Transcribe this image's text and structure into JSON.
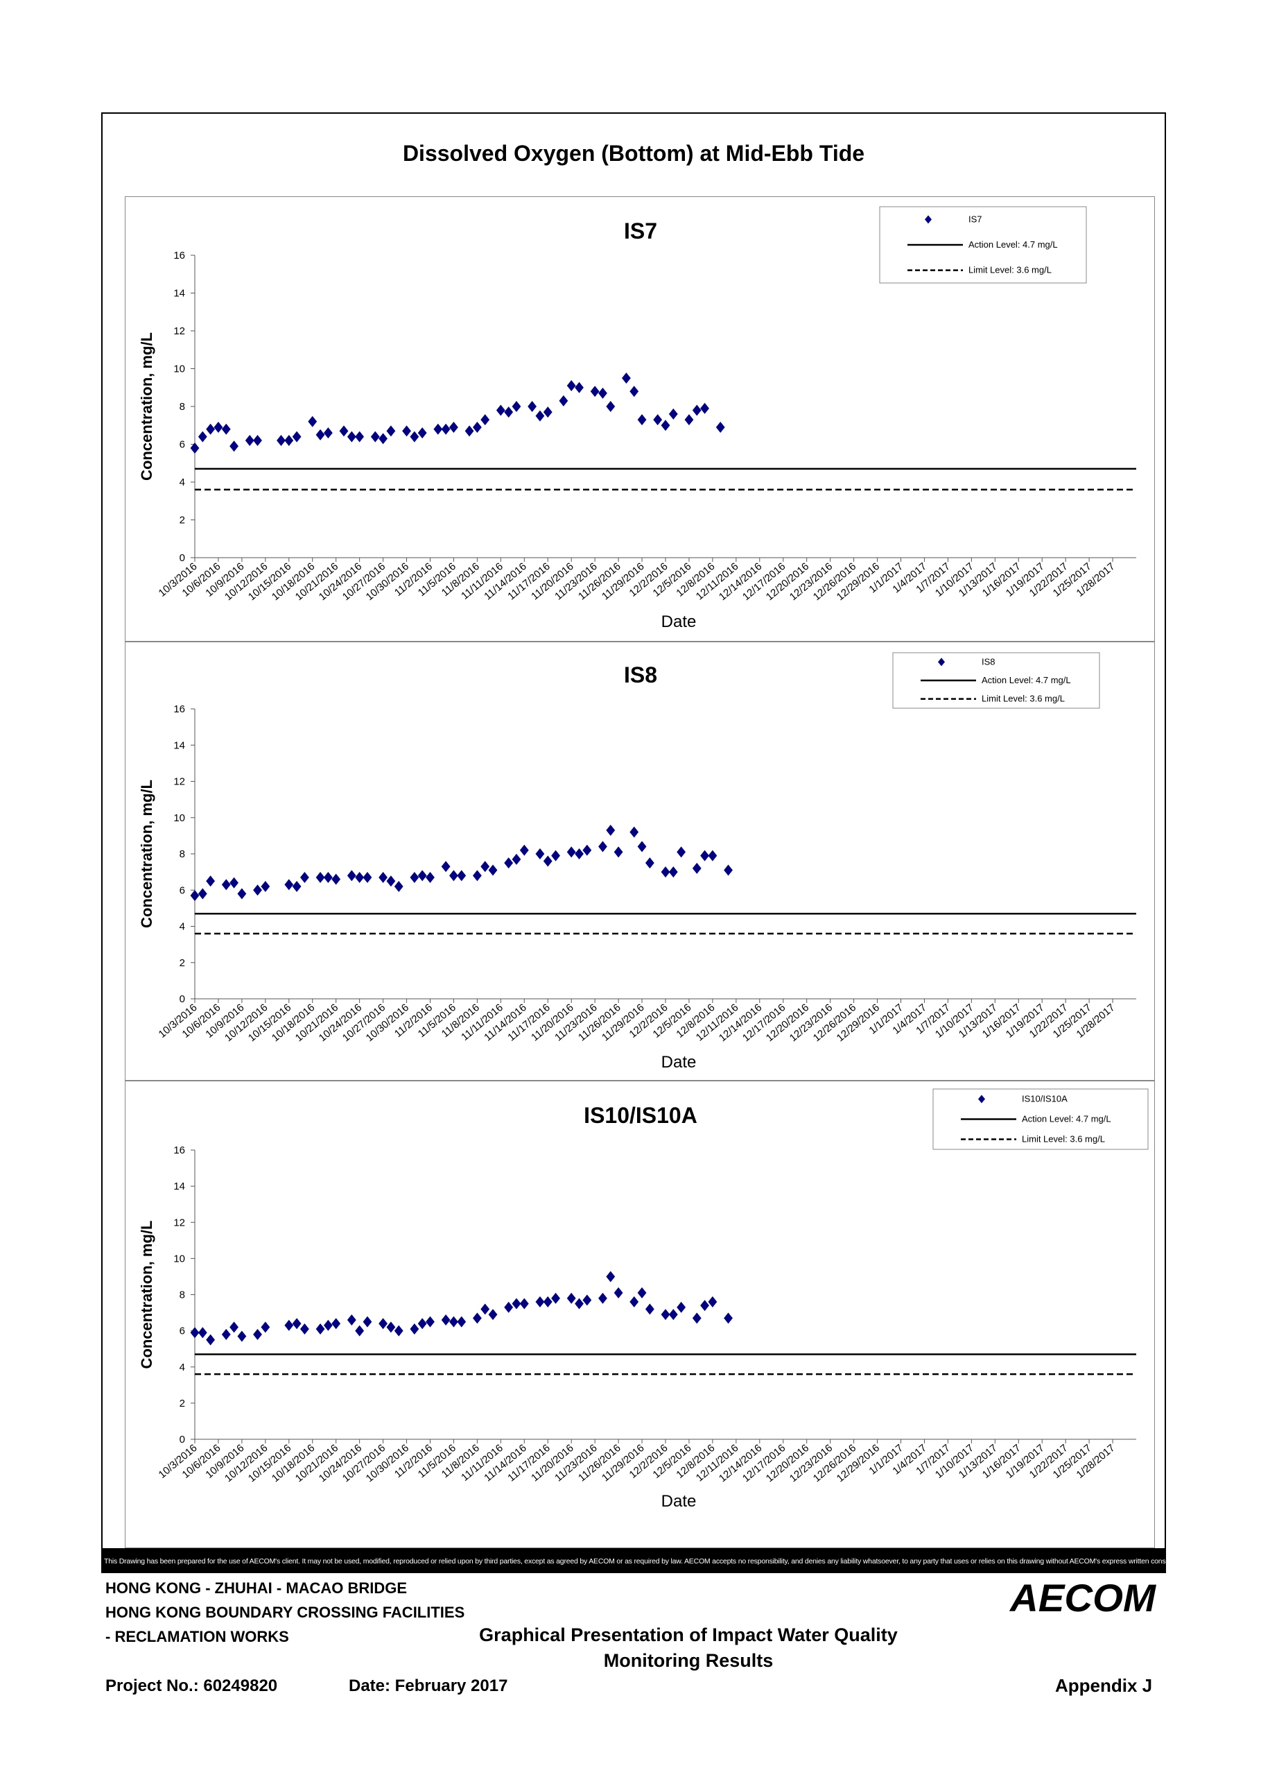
{
  "title": "Dissolved Oxygen (Bottom) at Mid-Ebb Tide",
  "x_ticks": [
    "10/3/2016",
    "10/6/2016",
    "10/9/2016",
    "10/12/2016",
    "10/15/2016",
    "10/18/2016",
    "10/21/2016",
    "10/24/2016",
    "10/27/2016",
    "10/30/2016",
    "11/2/2016",
    "11/5/2016",
    "11/8/2016",
    "11/11/2016",
    "11/14/2016",
    "11/17/2016",
    "11/20/2016",
    "11/23/2016",
    "11/26/2016",
    "11/29/2016",
    "12/2/2016",
    "12/5/2016",
    "12/8/2016",
    "12/11/2016",
    "12/14/2016",
    "12/17/2016",
    "12/20/2016",
    "12/23/2016",
    "12/26/2016",
    "12/29/2016",
    "1/1/2017",
    "1/4/2017",
    "1/7/2017",
    "1/10/2017",
    "1/13/2017",
    "1/16/2017",
    "1/19/2017",
    "1/22/2017",
    "1/25/2017",
    "1/28/2017"
  ],
  "chart_data": [
    {
      "type": "scatter",
      "title": "IS7",
      "xlabel": "Date",
      "ylabel": "Concentration, mg/L",
      "ylim": [
        0,
        16
      ],
      "y_ticks": [
        0,
        2,
        4,
        6,
        8,
        10,
        12,
        14,
        16
      ],
      "legend": {
        "placement": "top-right",
        "entries": [
          "IS7",
          "Action Level: 4.7 mg/L",
          "Limit Level: 3.6 mg/L"
        ]
      },
      "action_level": 4.7,
      "limit_level": 3.6,
      "series": [
        {
          "name": "IS7",
          "color": "#000080",
          "points": [
            [
              "10/3/2016",
              5.8
            ],
            [
              "10/4/2016",
              6.4
            ],
            [
              "10/5/2016",
              6.8
            ],
            [
              "10/6/2016",
              6.9
            ],
            [
              "10/7/2016",
              6.8
            ],
            [
              "10/8/2016",
              5.9
            ],
            [
              "10/10/2016",
              6.2
            ],
            [
              "10/11/2016",
              6.2
            ],
            [
              "10/14/2016",
              6.2
            ],
            [
              "10/15/2016",
              6.2
            ],
            [
              "10/16/2016",
              6.4
            ],
            [
              "10/18/2016",
              7.2
            ],
            [
              "10/19/2016",
              6.5
            ],
            [
              "10/20/2016",
              6.6
            ],
            [
              "10/22/2016",
              6.7
            ],
            [
              "10/23/2016",
              6.4
            ],
            [
              "10/24/2016",
              6.4
            ],
            [
              "10/26/2016",
              6.4
            ],
            [
              "10/27/2016",
              6.3
            ],
            [
              "10/28/2016",
              6.7
            ],
            [
              "10/30/2016",
              6.7
            ],
            [
              "10/31/2016",
              6.4
            ],
            [
              "11/1/2016",
              6.6
            ],
            [
              "11/3/2016",
              6.8
            ],
            [
              "11/4/2016",
              6.8
            ],
            [
              "11/5/2016",
              6.9
            ],
            [
              "11/7/2016",
              6.7
            ],
            [
              "11/8/2016",
              6.9
            ],
            [
              "11/9/2016",
              7.3
            ],
            [
              "11/11/2016",
              7.8
            ],
            [
              "11/12/2016",
              7.7
            ],
            [
              "11/13/2016",
              8.0
            ],
            [
              "11/15/2016",
              8.0
            ],
            [
              "11/16/2016",
              7.5
            ],
            [
              "11/17/2016",
              7.7
            ],
            [
              "11/19/2016",
              8.3
            ],
            [
              "11/20/2016",
              9.1
            ],
            [
              "11/21/2016",
              9.0
            ],
            [
              "11/23/2016",
              8.8
            ],
            [
              "11/24/2016",
              8.7
            ],
            [
              "11/25/2016",
              8.0
            ],
            [
              "11/27/2016",
              9.5
            ],
            [
              "11/28/2016",
              8.8
            ],
            [
              "11/29/2016",
              7.3
            ],
            [
              "12/1/2016",
              7.3
            ],
            [
              "12/2/2016",
              7.0
            ],
            [
              "12/3/2016",
              7.6
            ],
            [
              "12/5/2016",
              7.3
            ],
            [
              "12/6/2016",
              7.8
            ],
            [
              "12/7/2016",
              7.9
            ],
            [
              "12/9/2016",
              6.9
            ]
          ]
        }
      ]
    },
    {
      "type": "scatter",
      "title": "IS8",
      "xlabel": "Date",
      "ylabel": "Concentration, mg/L",
      "ylim": [
        0,
        16
      ],
      "y_ticks": [
        0,
        2,
        4,
        6,
        8,
        10,
        12,
        14,
        16
      ],
      "legend": {
        "placement": "top-right",
        "entries": [
          "IS8",
          "Action Level: 4.7 mg/L",
          "Limit Level: 3.6 mg/L"
        ]
      },
      "action_level": 4.7,
      "limit_level": 3.6,
      "series": [
        {
          "name": "IS8",
          "color": "#000080",
          "points": [
            [
              "10/3/2016",
              5.7
            ],
            [
              "10/4/2016",
              5.8
            ],
            [
              "10/5/2016",
              6.5
            ],
            [
              "10/7/2016",
              6.3
            ],
            [
              "10/8/2016",
              6.4
            ],
            [
              "10/9/2016",
              5.8
            ],
            [
              "10/11/2016",
              6.0
            ],
            [
              "10/12/2016",
              6.2
            ],
            [
              "10/15/2016",
              6.3
            ],
            [
              "10/16/2016",
              6.2
            ],
            [
              "10/17/2016",
              6.7
            ],
            [
              "10/19/2016",
              6.7
            ],
            [
              "10/20/2016",
              6.7
            ],
            [
              "10/21/2016",
              6.6
            ],
            [
              "10/23/2016",
              6.8
            ],
            [
              "10/24/2016",
              6.7
            ],
            [
              "10/25/2016",
              6.7
            ],
            [
              "10/27/2016",
              6.7
            ],
            [
              "10/28/2016",
              6.5
            ],
            [
              "10/29/2016",
              6.2
            ],
            [
              "10/31/2016",
              6.7
            ],
            [
              "11/1/2016",
              6.8
            ],
            [
              "11/2/2016",
              6.7
            ],
            [
              "11/4/2016",
              7.3
            ],
            [
              "11/5/2016",
              6.8
            ],
            [
              "11/6/2016",
              6.8
            ],
            [
              "11/8/2016",
              6.8
            ],
            [
              "11/9/2016",
              7.3
            ],
            [
              "11/10/2016",
              7.1
            ],
            [
              "11/12/2016",
              7.5
            ],
            [
              "11/13/2016",
              7.7
            ],
            [
              "11/14/2016",
              8.2
            ],
            [
              "11/16/2016",
              8.0
            ],
            [
              "11/17/2016",
              7.6
            ],
            [
              "11/18/2016",
              7.9
            ],
            [
              "11/20/2016",
              8.1
            ],
            [
              "11/21/2016",
              8.0
            ],
            [
              "11/22/2016",
              8.2
            ],
            [
              "11/24/2016",
              8.4
            ],
            [
              "11/25/2016",
              9.3
            ],
            [
              "11/26/2016",
              8.1
            ],
            [
              "11/28/2016",
              9.2
            ],
            [
              "11/29/2016",
              8.4
            ],
            [
              "11/30/2016",
              7.5
            ],
            [
              "12/2/2016",
              7.0
            ],
            [
              "12/3/2016",
              7.0
            ],
            [
              "12/4/2016",
              8.1
            ],
            [
              "12/6/2016",
              7.2
            ],
            [
              "12/7/2016",
              7.9
            ],
            [
              "12/8/2016",
              7.9
            ],
            [
              "12/10/2016",
              7.1
            ]
          ]
        }
      ]
    },
    {
      "type": "scatter",
      "title": "IS10/IS10A",
      "xlabel": "Date",
      "ylabel": "Concentration, mg/L",
      "ylim": [
        0,
        16
      ],
      "y_ticks": [
        0,
        2,
        4,
        6,
        8,
        10,
        12,
        14,
        16
      ],
      "legend": {
        "placement": "top-right",
        "entries": [
          "IS10/IS10A",
          "Action Level: 4.7 mg/L",
          "Limit Level: 3.6 mg/L"
        ]
      },
      "action_level": 4.7,
      "limit_level": 3.6,
      "series": [
        {
          "name": "IS10/IS10A",
          "color": "#000080",
          "points": [
            [
              "10/3/2016",
              5.9
            ],
            [
              "10/4/2016",
              5.9
            ],
            [
              "10/5/2016",
              5.5
            ],
            [
              "10/7/2016",
              5.8
            ],
            [
              "10/8/2016",
              6.2
            ],
            [
              "10/9/2016",
              5.7
            ],
            [
              "10/11/2016",
              5.8
            ],
            [
              "10/12/2016",
              6.2
            ],
            [
              "10/15/2016",
              6.3
            ],
            [
              "10/16/2016",
              6.4
            ],
            [
              "10/17/2016",
              6.1
            ],
            [
              "10/19/2016",
              6.1
            ],
            [
              "10/20/2016",
              6.3
            ],
            [
              "10/21/2016",
              6.4
            ],
            [
              "10/23/2016",
              6.6
            ],
            [
              "10/24/2016",
              6.0
            ],
            [
              "10/25/2016",
              6.5
            ],
            [
              "10/27/2016",
              6.4
            ],
            [
              "10/28/2016",
              6.2
            ],
            [
              "10/29/2016",
              6.0
            ],
            [
              "10/31/2016",
              6.1
            ],
            [
              "11/1/2016",
              6.4
            ],
            [
              "11/2/2016",
              6.5
            ],
            [
              "11/4/2016",
              6.6
            ],
            [
              "11/5/2016",
              6.5
            ],
            [
              "11/6/2016",
              6.5
            ],
            [
              "11/8/2016",
              6.7
            ],
            [
              "11/9/2016",
              7.2
            ],
            [
              "11/10/2016",
              6.9
            ],
            [
              "11/12/2016",
              7.3
            ],
            [
              "11/13/2016",
              7.5
            ],
            [
              "11/14/2016",
              7.5
            ],
            [
              "11/16/2016",
              7.6
            ],
            [
              "11/17/2016",
              7.6
            ],
            [
              "11/18/2016",
              7.8
            ],
            [
              "11/20/2016",
              7.8
            ],
            [
              "11/21/2016",
              7.5
            ],
            [
              "11/22/2016",
              7.7
            ],
            [
              "11/24/2016",
              7.8
            ],
            [
              "11/25/2016",
              9.0
            ],
            [
              "11/26/2016",
              8.1
            ],
            [
              "11/28/2016",
              7.6
            ],
            [
              "11/29/2016",
              8.1
            ],
            [
              "11/30/2016",
              7.2
            ],
            [
              "12/2/2016",
              6.9
            ],
            [
              "12/3/2016",
              6.9
            ],
            [
              "12/4/2016",
              7.3
            ],
            [
              "12/6/2016",
              6.7
            ],
            [
              "12/7/2016",
              7.4
            ],
            [
              "12/8/2016",
              7.6
            ],
            [
              "12/10/2016",
              6.7
            ]
          ]
        }
      ]
    }
  ],
  "disclaimer": "This Drawing has been prepared for the use of AECOM's client. It may not be used, modified, reproduced or relied upon by third parties, except as agreed by AECOM or as required by law. AECOM accepts no responsibility, and denies any liability whatsoever, to any party that uses or relies on this drawing without AECOM's express written consent.",
  "footer": {
    "project_line1": "HONG KONG - ZHUHAI - MACAO BRIDGE",
    "project_line2": "HONG KONG BOUNDARY CROSSING FACILITIES",
    "project_line3": "- RECLAMATION WORKS",
    "drawing_title_line1": "Graphical Presentation of Impact Water Quality",
    "drawing_title_line2": "Monitoring Results",
    "project_no": "Project No.: 60249820",
    "date": "Date: February 2017",
    "appendix": "Appendix J",
    "logo_text": "AECOM"
  }
}
